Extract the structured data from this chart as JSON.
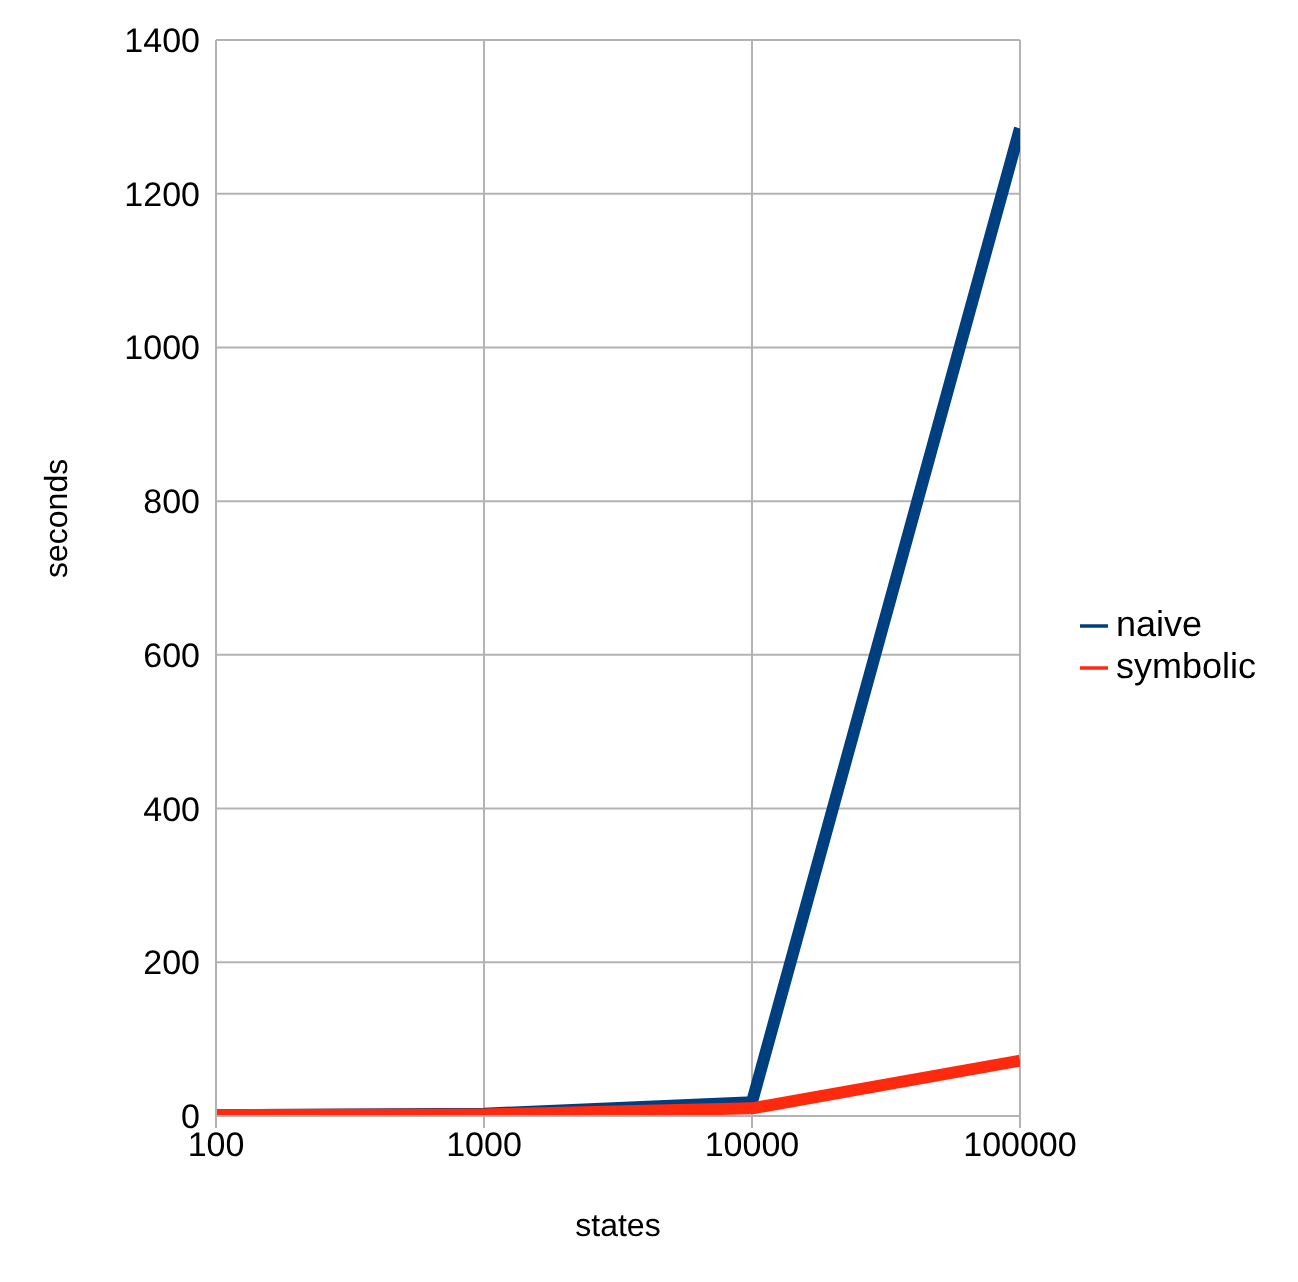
{
  "chart_data": {
    "type": "line",
    "xlabel": "states",
    "ylabel": "seconds",
    "categories": [
      "100",
      "1000",
      "10000",
      "100000"
    ],
    "series": [
      {
        "name": "naive",
        "color": "#003f7f",
        "values": [
          1,
          3,
          18,
          1285
        ]
      },
      {
        "name": "symbolic",
        "color": "#ff2a0e",
        "values": [
          1,
          2,
          10,
          72
        ]
      }
    ],
    "ylim": [
      0,
      1400
    ],
    "yticks": [
      0,
      200,
      400,
      600,
      800,
      1000,
      1200,
      1400
    ],
    "grid": true,
    "legend": "right",
    "marker": "none",
    "line_style": "solid"
  }
}
